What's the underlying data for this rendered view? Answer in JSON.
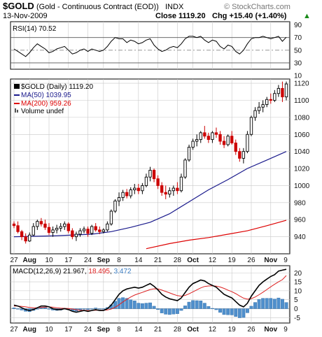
{
  "header": {
    "symbol": "$GOLD",
    "name": "(Gold - Continuous Contract (EOD))",
    "exchange": "INDX",
    "date": "13-Nov-2009",
    "close_text": "Close 1119.20",
    "change_text": "Chg +15.40 (+1.40%)",
    "change_arrow": "▲",
    "brand": "© StockCharts.com"
  },
  "legend": {
    "price": "$GOLD (Daily) 1119.20",
    "ma50": "MA(50) 1039.95",
    "ma200": "MA(200) 959.26",
    "volume": "Volume undef"
  },
  "rsi_panel": {
    "label": "RSI(14) 70.52"
  },
  "macd_panel": {
    "label_prefix": "MACD(12,26,9)",
    "macd_value": "21.967",
    "signal_value": "18.495",
    "hist_value": "3.472"
  },
  "x_axis": {
    "ticks": [
      {
        "label": "27",
        "bold": false
      },
      {
        "label": "Aug",
        "bold": true
      },
      {
        "label": "10",
        "bold": false
      },
      {
        "label": "17",
        "bold": false
      },
      {
        "label": "24",
        "bold": false
      },
      {
        "label": "Sep",
        "bold": true
      },
      {
        "label": "8",
        "bold": false
      },
      {
        "label": "14",
        "bold": false
      },
      {
        "label": "21",
        "bold": false
      },
      {
        "label": "28",
        "bold": false
      },
      {
        "label": "Oct",
        "bold": true
      },
      {
        "label": "12",
        "bold": false
      },
      {
        "label": "19",
        "bold": false
      },
      {
        "label": "26",
        "bold": false
      },
      {
        "label": "Nov",
        "bold": true
      },
      {
        "label": "9",
        "bold": false
      }
    ]
  },
  "colors": {
    "up": "#000000",
    "down": "#cc0000",
    "ma50": "#1a1a8c",
    "ma200": "#dd0000",
    "macd": "#000000",
    "signal": "#dd2222",
    "hist": "#4f8fcc",
    "grid": "#c8c8c8"
  },
  "chart_data": [
    {
      "type": "candlestick",
      "title": "$GOLD (Gold - Continuous Contract (EOD))",
      "ylim": [
        920,
        1125
      ],
      "yticks": [
        940,
        960,
        980,
        1000,
        1020,
        1040,
        1060,
        1080,
        1100,
        1120
      ],
      "ohlc": [
        [
          955,
          958,
          950,
          953
        ],
        [
          953,
          958,
          944,
          946
        ],
        [
          946,
          948,
          936,
          940
        ],
        [
          940,
          944,
          932,
          935
        ],
        [
          935,
          945,
          934,
          942
        ],
        [
          942,
          956,
          941,
          952
        ],
        [
          952,
          960,
          948,
          958
        ],
        [
          958,
          962,
          952,
          955
        ],
        [
          955,
          960,
          948,
          951
        ],
        [
          951,
          956,
          942,
          945
        ],
        [
          945,
          952,
          940,
          948
        ],
        [
          948,
          954,
          944,
          950
        ],
        [
          950,
          956,
          946,
          952
        ],
        [
          952,
          958,
          948,
          955
        ],
        [
          955,
          957,
          944,
          947
        ],
        [
          947,
          950,
          937,
          940
        ],
        [
          940,
          946,
          935,
          943
        ],
        [
          943,
          950,
          940,
          947
        ],
        [
          947,
          952,
          944,
          949
        ],
        [
          949,
          952,
          940,
          944
        ],
        [
          944,
          954,
          942,
          952
        ],
        [
          952,
          956,
          946,
          948
        ],
        [
          948,
          952,
          943,
          946
        ],
        [
          946,
          950,
          944,
          948
        ],
        [
          948,
          958,
          946,
          955
        ],
        [
          955,
          972,
          953,
          970
        ],
        [
          970,
          984,
          968,
          982
        ],
        [
          982,
          992,
          976,
          986
        ],
        [
          986,
          995,
          982,
          992
        ],
        [
          992,
          996,
          985,
          988
        ],
        [
          988,
          998,
          985,
          995
        ],
        [
          995,
          1002,
          990,
          997
        ],
        [
          997,
          1002,
          990,
          994
        ],
        [
          994,
          1003,
          990,
          1000
        ],
        [
          1000,
          1014,
          998,
          1010
        ],
        [
          1010,
          1022,
          1005,
          1018
        ],
        [
          1018,
          1020,
          1004,
          1008
        ],
        [
          1008,
          1012,
          996,
          1000
        ],
        [
          1000,
          1004,
          988,
          992
        ],
        [
          992,
          1000,
          984,
          990
        ],
        [
          990,
          998,
          986,
          994
        ],
        [
          994,
          1000,
          988,
          997
        ],
        [
          997,
          1004,
          990,
          994
        ],
        [
          994,
          1014,
          992,
          1010
        ],
        [
          1010,
          1032,
          1008,
          1030
        ],
        [
          1030,
          1048,
          1028,
          1045
        ],
        [
          1045,
          1055,
          1042,
          1052
        ],
        [
          1052,
          1060,
          1046,
          1054
        ],
        [
          1054,
          1064,
          1050,
          1062
        ],
        [
          1062,
          1070,
          1055,
          1058
        ],
        [
          1058,
          1062,
          1050,
          1054
        ],
        [
          1054,
          1064,
          1050,
          1062
        ],
        [
          1062,
          1068,
          1056,
          1060
        ],
        [
          1060,
          1064,
          1048,
          1052
        ],
        [
          1052,
          1058,
          1044,
          1048
        ],
        [
          1048,
          1060,
          1046,
          1058
        ],
        [
          1058,
          1064,
          1048,
          1050
        ],
        [
          1050,
          1054,
          1036,
          1040
        ],
        [
          1040,
          1044,
          1028,
          1032
        ],
        [
          1032,
          1044,
          1026,
          1040
        ],
        [
          1040,
          1064,
          1038,
          1060
        ],
        [
          1060,
          1082,
          1058,
          1080
        ],
        [
          1080,
          1092,
          1076,
          1088
        ],
        [
          1088,
          1098,
          1084,
          1092
        ],
        [
          1092,
          1100,
          1086,
          1095
        ],
        [
          1095,
          1104,
          1092,
          1101
        ],
        [
          1101,
          1108,
          1096,
          1100
        ],
        [
          1100,
          1112,
          1098,
          1108
        ],
        [
          1108,
          1118,
          1104,
          1114
        ],
        [
          1114,
          1122,
          1098,
          1104
        ],
        [
          1104,
          1122,
          1100,
          1119.2
        ]
      ],
      "ma50": [
        [
          0,
          940
        ],
        [
          10,
          941
        ],
        [
          20,
          943
        ],
        [
          25,
          946
        ],
        [
          30,
          951
        ],
        [
          35,
          957
        ],
        [
          40,
          967
        ],
        [
          45,
          981
        ],
        [
          50,
          995
        ],
        [
          55,
          1007
        ],
        [
          60,
          1020
        ],
        [
          65,
          1030
        ],
        [
          70,
          1040
        ]
      ],
      "ma200": [
        [
          34,
          926
        ],
        [
          40,
          932
        ],
        [
          45,
          936
        ],
        [
          50,
          939
        ],
        [
          55,
          943
        ],
        [
          60,
          947
        ],
        [
          65,
          953
        ],
        [
          70,
          959.26
        ]
      ]
    },
    {
      "type": "line",
      "title": "RSI(14) 70.52",
      "ylim": [
        20,
        95
      ],
      "yticks": [
        90,
        70,
        50,
        30,
        10
      ],
      "reference_lines": [
        70,
        50,
        30
      ],
      "values": [
        52,
        48,
        44,
        40,
        46,
        54,
        60,
        56,
        52,
        46,
        48,
        52,
        54,
        56,
        50,
        44,
        46,
        50,
        52,
        48,
        52,
        50,
        48,
        50,
        56,
        64,
        70,
        68,
        68,
        62,
        66,
        64,
        60,
        62,
        66,
        68,
        58,
        52,
        48,
        50,
        54,
        56,
        54,
        60,
        68,
        72,
        72,
        70,
        72,
        66,
        62,
        66,
        64,
        56,
        52,
        58,
        56,
        48,
        44,
        50,
        60,
        68,
        70,
        70,
        72,
        70,
        68,
        70,
        72,
        64,
        70.52
      ]
    },
    {
      "type": "line",
      "title": "MACD(12,26,9)",
      "ylim": [
        -8,
        24
      ],
      "yticks": [
        20,
        15,
        10,
        5,
        0,
        -5
      ],
      "series": [
        {
          "name": "MACD",
          "values": [
            2,
            1.5,
            0.5,
            -0.5,
            -1,
            -0.5,
            0.5,
            1.5,
            1.5,
            1,
            0,
            -0.5,
            -0.5,
            0,
            -0.5,
            -1.5,
            -2,
            -1.5,
            -1,
            -1.5,
            -1,
            -0.5,
            -1,
            -1,
            0,
            2,
            5,
            8,
            10,
            11,
            11.5,
            12,
            11.5,
            12,
            13,
            14,
            12.5,
            10.5,
            8,
            6.5,
            5.5,
            5,
            4.5,
            6,
            9,
            12,
            14,
            15,
            16,
            15.5,
            14,
            13,
            12,
            10,
            8,
            7,
            6,
            4,
            2,
            1,
            3,
            7,
            10,
            13,
            15,
            16.5,
            18,
            19,
            21,
            21.5,
            21.967
          ]
        },
        {
          "name": "Signal",
          "values": [
            1.5,
            1.5,
            1.3,
            1,
            0.7,
            0.5,
            0.5,
            0.7,
            0.9,
            1,
            0.8,
            0.5,
            0.3,
            0.2,
            0.1,
            -0.2,
            -0.6,
            -0.8,
            -0.9,
            -1,
            -1,
            -0.9,
            -0.9,
            -0.9,
            -0.7,
            -0.2,
            0.8,
            2.2,
            3.8,
            5.2,
            6.5,
            7.6,
            8.4,
            9.1,
            9.9,
            10.7,
            11.1,
            11,
            10.4,
            9.6,
            8.8,
            8,
            7.3,
            7,
            7.4,
            8.3,
            9.4,
            10.5,
            11.6,
            12.4,
            12.7,
            12.8,
            12.6,
            12.1,
            11.3,
            10.4,
            9.5,
            8.4,
            7.1,
            5.9,
            5.3,
            5.6,
            6.5,
            7.8,
            9.2,
            10.7,
            12.2,
            13.6,
            15,
            16.2,
            18.495
          ]
        },
        {
          "name": "Histogram",
          "values": [
            0.5,
            0,
            -0.8,
            -1.5,
            -1.7,
            -1,
            0,
            0.8,
            0.6,
            0,
            -0.8,
            -1,
            -0.8,
            -0.2,
            -0.6,
            -1.3,
            -1.4,
            -0.7,
            -0.1,
            -0.5,
            0,
            0.4,
            -0.1,
            -0.1,
            0.7,
            2.2,
            4.2,
            5.8,
            6.2,
            5.8,
            5,
            4.4,
            3.1,
            2.9,
            3.1,
            3.3,
            1.4,
            -0.5,
            -2.4,
            -3.1,
            -3.3,
            -3,
            -2.8,
            -1,
            1.6,
            3.7,
            4.6,
            4.5,
            4.4,
            3.1,
            1.3,
            0.2,
            -0.6,
            -2.1,
            -3.3,
            -3.4,
            -3.5,
            -4.4,
            -5.1,
            -4.9,
            -2.3,
            1.4,
            3.5,
            5.2,
            5.8,
            5.8,
            5.8,
            5.4,
            6,
            5.3,
            3.472
          ]
        }
      ]
    }
  ]
}
